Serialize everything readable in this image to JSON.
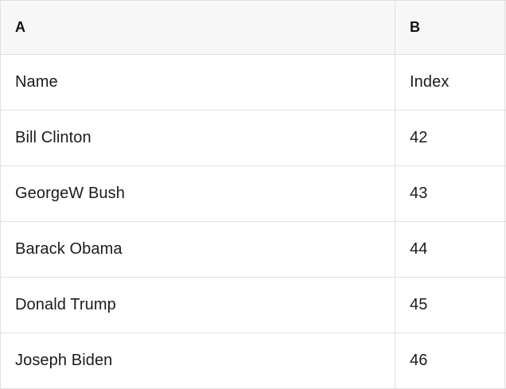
{
  "spreadsheet": {
    "column_headers": {
      "a": "A",
      "b": "B"
    },
    "rows": [
      {
        "a": "Name",
        "b": "Index"
      },
      {
        "a": "Bill Clinton",
        "b": "42"
      },
      {
        "a": "GeorgeW Bush",
        "b": "43"
      },
      {
        "a": "Barack Obama",
        "b": "44"
      },
      {
        "a": "Donald Trump",
        "b": "45"
      },
      {
        "a": "Joseph Biden",
        "b": "46"
      }
    ],
    "colors": {
      "header_background": "#f7f7f7",
      "grid_border": "#e0e0e0",
      "text": "#1b1b1b"
    }
  }
}
